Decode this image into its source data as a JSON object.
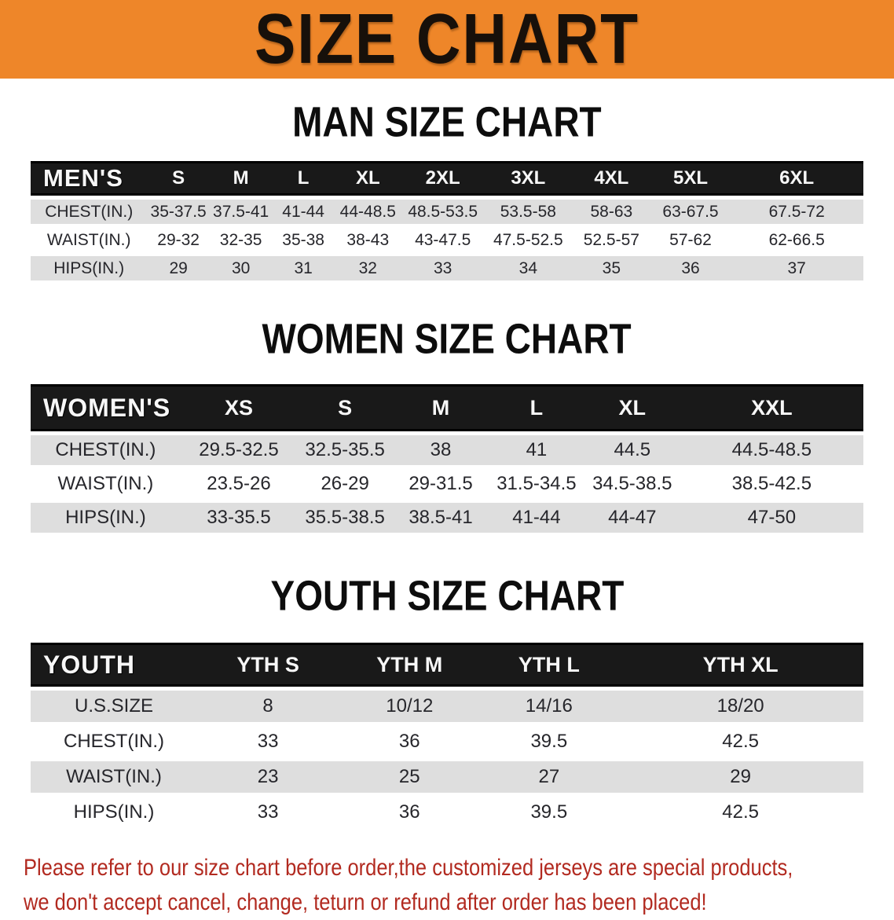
{
  "banner": {
    "title": "SIZE CHART",
    "bg_color": "#ee8629"
  },
  "sections": [
    {
      "heading": "MAN SIZE CHART",
      "table": {
        "label": "MEN'S",
        "columns": [
          "S",
          "M",
          "L",
          "XL",
          "2XL",
          "3XL",
          "4XL",
          "5XL",
          "6XL"
        ],
        "rows": [
          {
            "label": "CHEST(IN.)",
            "values": [
              "35-37.5",
              "37.5-41",
              "41-44",
              "44-48.5",
              "48.5-53.5",
              "53.5-58",
              "58-63",
              "63-67.5",
              "67.5-72"
            ]
          },
          {
            "label": "WAIST(IN.)",
            "values": [
              "29-32",
              "32-35",
              "35-38",
              "38-43",
              "43-47.5",
              "47.5-52.5",
              "52.5-57",
              "57-62",
              "62-66.5"
            ]
          },
          {
            "label": "HIPS(IN.)",
            "values": [
              "29",
              "30",
              "31",
              "32",
              "33",
              "34",
              "35",
              "36",
              "37"
            ]
          }
        ]
      }
    },
    {
      "heading": "WOMEN SIZE CHART",
      "table": {
        "label": "WOMEN'S",
        "columns": [
          "XS",
          "S",
          "M",
          "L",
          "XL",
          "XXL"
        ],
        "rows": [
          {
            "label": "CHEST(IN.)",
            "values": [
              "29.5-32.5",
              "32.5-35.5",
              "38",
              "41",
              "44.5",
              "44.5-48.5"
            ]
          },
          {
            "label": "WAIST(IN.)",
            "values": [
              "23.5-26",
              "26-29",
              "29-31.5",
              "31.5-34.5",
              "34.5-38.5",
              "38.5-42.5"
            ]
          },
          {
            "label": "HIPS(IN.)",
            "values": [
              "33-35.5",
              "35.5-38.5",
              "38.5-41",
              "41-44",
              "44-47",
              "47-50"
            ]
          }
        ]
      }
    },
    {
      "heading": "YOUTH SIZE CHART",
      "table": {
        "label": "YOUTH",
        "columns": [
          "YTH S",
          "YTH M",
          "YTH L",
          "YTH XL"
        ],
        "rows": [
          {
            "label": "U.S.SIZE",
            "values": [
              "8",
              "10/12",
              "14/16",
              "18/20"
            ]
          },
          {
            "label": "CHEST(IN.)",
            "values": [
              "33",
              "36",
              "39.5",
              "42.5"
            ]
          },
          {
            "label": "WAIST(IN.)",
            "values": [
              "23",
              "25",
              "27",
              "29"
            ]
          },
          {
            "label": "HIPS(IN.)",
            "values": [
              "33",
              "36",
              "39.5",
              "42.5"
            ]
          }
        ]
      }
    }
  ],
  "note": {
    "line1": "Please refer to our size chart before order,the customized jerseys are special products,",
    "line2": "we don't accept cancel, change, teturn or refund after order has been placed!",
    "color": "#b22a20"
  },
  "colors": {
    "banner_orange": "#ee8629",
    "header_black": "#191919",
    "row_gray": "#dedede",
    "note_red": "#b22a20"
  }
}
